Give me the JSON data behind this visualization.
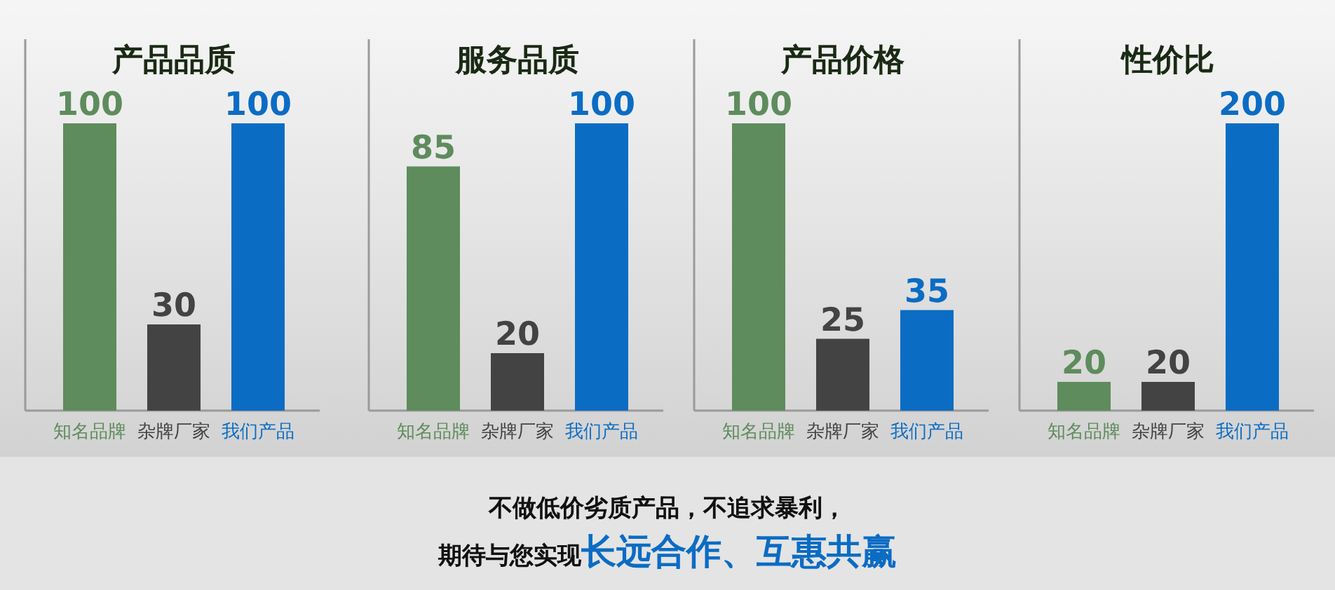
{
  "chart_data": [
    {
      "type": "bar",
      "title": "产品品质",
      "categories": [
        "知名品牌",
        "杂牌厂家",
        "我们产品"
      ],
      "values": [
        100,
        30,
        100
      ],
      "colors": [
        "#5e8c5c",
        "#434343",
        "#0b6cc4"
      ],
      "data_labels": true
    },
    {
      "type": "bar",
      "title": "服务品质",
      "categories": [
        "知名品牌",
        "杂牌厂家",
        "我们产品"
      ],
      "values": [
        85,
        20,
        100
      ],
      "colors": [
        "#5e8c5c",
        "#434343",
        "#0b6cc4"
      ],
      "data_labels": true
    },
    {
      "type": "bar",
      "title": "产品价格",
      "categories": [
        "知名品牌",
        "杂牌厂家",
        "我们产品"
      ],
      "values": [
        100,
        25,
        35
      ],
      "colors": [
        "#5e8c5c",
        "#434343",
        "#0b6cc4"
      ],
      "data_labels": true
    },
    {
      "type": "bar",
      "title": "性价比",
      "categories": [
        "知名品牌",
        "杂牌厂家",
        "我们产品"
      ],
      "values": [
        20,
        20,
        200
      ],
      "colors": [
        "#5e8c5c",
        "#434343",
        "#0b6cc4"
      ],
      "data_labels": true
    },
    {
      "type": "other",
      "annotations": [
        "不做低价劣质产品，不追求暴利，",
        "期待与您实现**长远合作、互惠共赢**"
      ]
    }
  ]
}
